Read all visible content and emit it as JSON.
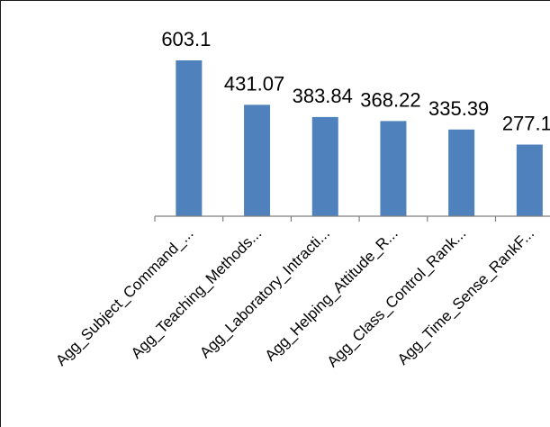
{
  "chart_data": {
    "type": "bar",
    "categories": [
      "Agg_Subject_Command_...",
      "Agg_Teaching_Methods...",
      "Agg_Laboratory_Intracti...",
      "Agg_Helping_Attitude_R...",
      "Agg_Class_Control_Rank...",
      "Agg_Time_Sense_RankF..."
    ],
    "values": [
      603.1,
      431.07,
      383.84,
      368.22,
      335.39,
      277.1
    ],
    "data_labels": [
      "603.1",
      "431.07",
      "383.84",
      "368.22",
      "335.39",
      "277.1"
    ],
    "title": "",
    "xlabel": "",
    "ylabel": "",
    "ylim": [
      0,
      700
    ],
    "grid": false,
    "legend": "none",
    "bar_color": "#4F81BD",
    "axis_color": "#808080"
  }
}
